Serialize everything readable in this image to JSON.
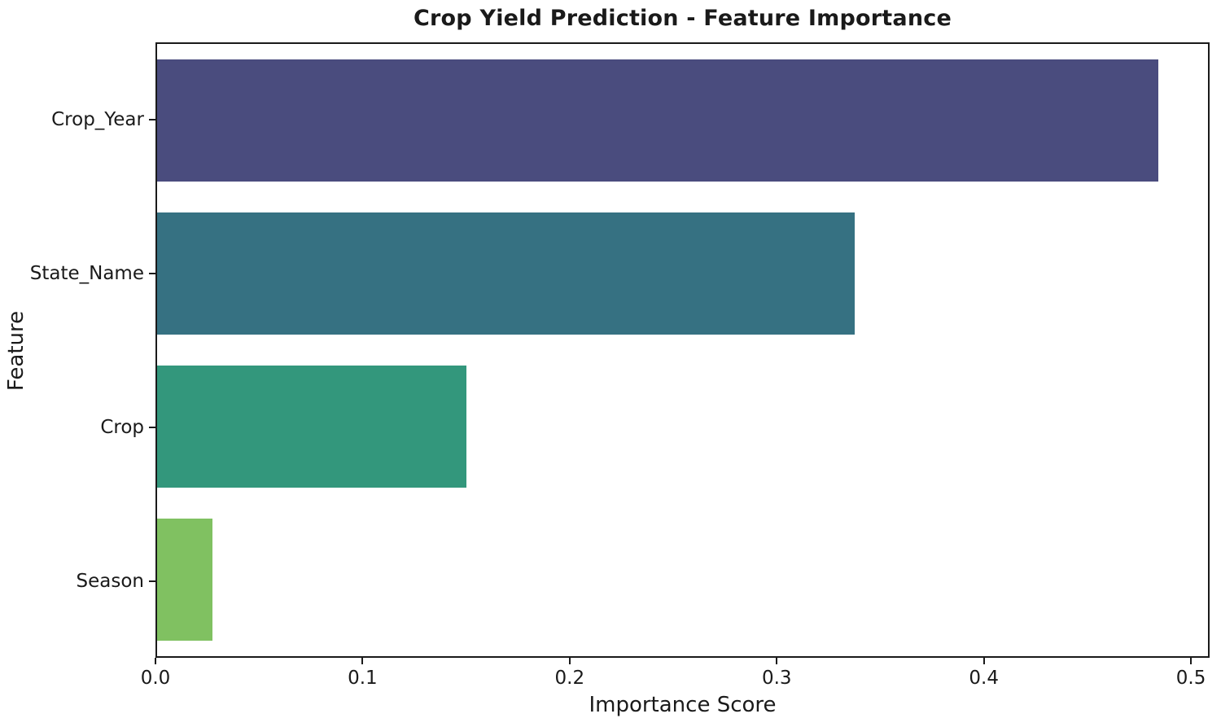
{
  "chart_data": {
    "type": "bar",
    "orientation": "horizontal",
    "title": "Crop Yield Prediction - Feature Importance",
    "xlabel": "Importance Score",
    "ylabel": "Feature",
    "categories": [
      "Crop_Year",
      "State_Name",
      "Crop",
      "Season"
    ],
    "values": [
      0.485,
      0.338,
      0.15,
      0.027
    ],
    "bar_colors": [
      "#4a4c7e",
      "#367182",
      "#33977c",
      "#80c161"
    ],
    "xlim": [
      0.0,
      0.509
    ],
    "x_ticks": [
      0.0,
      0.1,
      0.2,
      0.3,
      0.4,
      0.5
    ],
    "x_tick_labels": [
      "0.0",
      "0.1",
      "0.2",
      "0.3",
      "0.4",
      "0.5"
    ],
    "grid": false,
    "legend": null,
    "bar_band_fraction": 0.8,
    "text_color": "#1a1a1a",
    "spine_color": "#1a1a1a",
    "background": "#ffffff"
  }
}
